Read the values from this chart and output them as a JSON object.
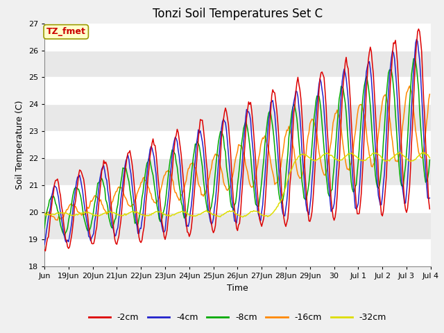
{
  "title": "Tonzi Soil Temperatures Set C",
  "xlabel": "Time",
  "ylabel": "Soil Temperature (C)",
  "ylim": [
    18.0,
    27.0
  ],
  "yticks": [
    18.0,
    19.0,
    20.0,
    21.0,
    22.0,
    23.0,
    24.0,
    25.0,
    26.0,
    27.0
  ],
  "annotation_label": "TZ_fmet",
  "annotation_color": "#cc0000",
  "annotation_bg": "#ffffcc",
  "annotation_edge": "#999900",
  "series_colors": [
    "#dd0000",
    "#2222cc",
    "#00aa00",
    "#ff8800",
    "#dddd00"
  ],
  "series_labels": [
    "-2cm",
    "-4cm",
    "-8cm",
    "-16cm",
    "-32cm"
  ],
  "background_color": "#f0f0f0",
  "plot_bg": "#f0f0f0",
  "grid_color": "#ffffff",
  "title_fontsize": 12,
  "axis_label_fontsize": 9,
  "tick_label_fontsize": 8,
  "legend_fontsize": 9,
  "n_points": 384,
  "date_labels": [
    "Jun",
    "19Jun",
    "20Jun",
    "21Jun",
    "22Jun",
    "23Jun",
    "24Jun",
    "25Jun",
    "26Jun",
    "27Jun",
    "28Jun",
    "29Jun",
    "30",
    "Jul 1",
    "Jul 2",
    "Jul 3",
    "Jul 4"
  ],
  "date_positions": [
    0,
    24,
    48,
    72,
    96,
    120,
    144,
    168,
    192,
    216,
    240,
    264,
    288,
    312,
    336,
    360,
    384
  ]
}
